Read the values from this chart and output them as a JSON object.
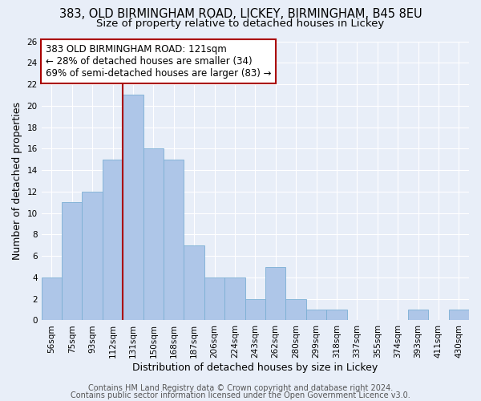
{
  "title": "383, OLD BIRMINGHAM ROAD, LICKEY, BIRMINGHAM, B45 8EU",
  "subtitle": "Size of property relative to detached houses in Lickey",
  "xlabel": "Distribution of detached houses by size in Lickey",
  "ylabel": "Number of detached properties",
  "categories": [
    "56sqm",
    "75sqm",
    "93sqm",
    "112sqm",
    "131sqm",
    "150sqm",
    "168sqm",
    "187sqm",
    "206sqm",
    "224sqm",
    "243sqm",
    "262sqm",
    "280sqm",
    "299sqm",
    "318sqm",
    "337sqm",
    "355sqm",
    "374sqm",
    "393sqm",
    "411sqm",
    "430sqm"
  ],
  "values": [
    4,
    11,
    12,
    15,
    21,
    16,
    15,
    7,
    4,
    4,
    2,
    5,
    2,
    1,
    1,
    0,
    0,
    0,
    1,
    0,
    1
  ],
  "bar_color": "#aec6e8",
  "bar_edgecolor": "#7bafd4",
  "vline_index": 4,
  "vline_color": "#aa0000",
  "annotation_text": "383 OLD BIRMINGHAM ROAD: 121sqm\n← 28% of detached houses are smaller (34)\n69% of semi-detached houses are larger (83) →",
  "annotation_box_edgecolor": "#aa0000",
  "annotation_box_facecolor": "#ffffff",
  "ylim": [
    0,
    26
  ],
  "yticks": [
    0,
    2,
    4,
    6,
    8,
    10,
    12,
    14,
    16,
    18,
    20,
    22,
    24,
    26
  ],
  "background_color": "#e8eef8",
  "grid_color": "#ffffff",
  "footer_line1": "Contains HM Land Registry data © Crown copyright and database right 2024.",
  "footer_line2": "Contains public sector information licensed under the Open Government Licence v3.0.",
  "title_fontsize": 10.5,
  "subtitle_fontsize": 9.5,
  "axis_label_fontsize": 9,
  "tick_fontsize": 7.5,
  "footer_fontsize": 7,
  "annotation_fontsize": 8.5
}
